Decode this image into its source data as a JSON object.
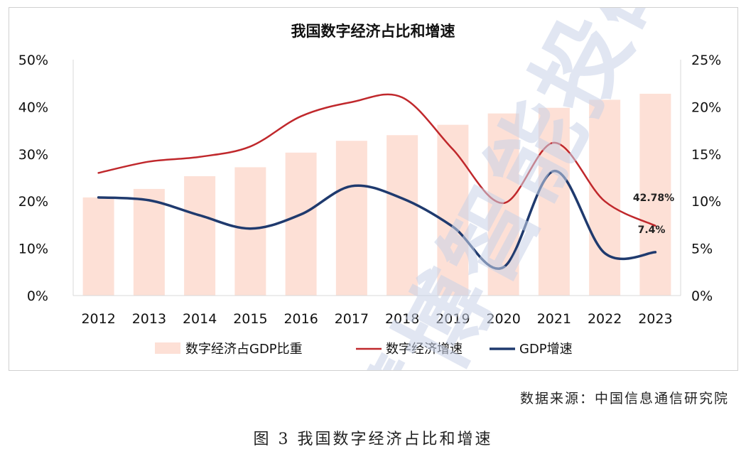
{
  "chart_data": {
    "type": "bar",
    "title": "我国数字经济占比和增速",
    "categories": [
      "2012",
      "2013",
      "2014",
      "2015",
      "2016",
      "2017",
      "2018",
      "2019",
      "2020",
      "2021",
      "2022",
      "2023"
    ],
    "series": [
      {
        "name": "数字经济占GDP比重",
        "type": "bar",
        "axis": "left",
        "values": [
          20.8,
          22.6,
          25.3,
          27.2,
          30.3,
          32.8,
          34.0,
          36.2,
          38.6,
          39.8,
          41.5,
          42.78
        ],
        "color": "#fde0d6"
      },
      {
        "name": "数字经济增速",
        "type": "line",
        "axis": "right",
        "values": [
          13.0,
          14.2,
          14.7,
          15.8,
          19.0,
          20.5,
          21.0,
          15.5,
          9.8,
          16.2,
          10.0,
          7.4
        ],
        "color": "#c0282c"
      },
      {
        "name": "GDP增速",
        "type": "line",
        "axis": "right",
        "values": [
          10.4,
          10.1,
          8.5,
          7.1,
          8.6,
          11.6,
          10.3,
          7.3,
          3.0,
          13.2,
          4.5,
          4.6
        ],
        "color": "#1f3a6e"
      }
    ],
    "y_left": {
      "min": 0,
      "max": 50,
      "ticks": [
        "0%",
        "10%",
        "20%",
        "30%",
        "40%",
        "50%"
      ]
    },
    "y_right": {
      "min": 0,
      "max": 25,
      "ticks": [
        "0%",
        "5%",
        "10%",
        "15%",
        "20%",
        "25%"
      ]
    },
    "annotations": [
      "42.78%",
      "7.4%"
    ],
    "legend_position": "bottom",
    "grid": false
  },
  "source_note": "数据来源：中国信息通信研究院",
  "figure_caption": "图 3 我国数字经济占比和增速",
  "watermark_text": "慧博智能投研"
}
